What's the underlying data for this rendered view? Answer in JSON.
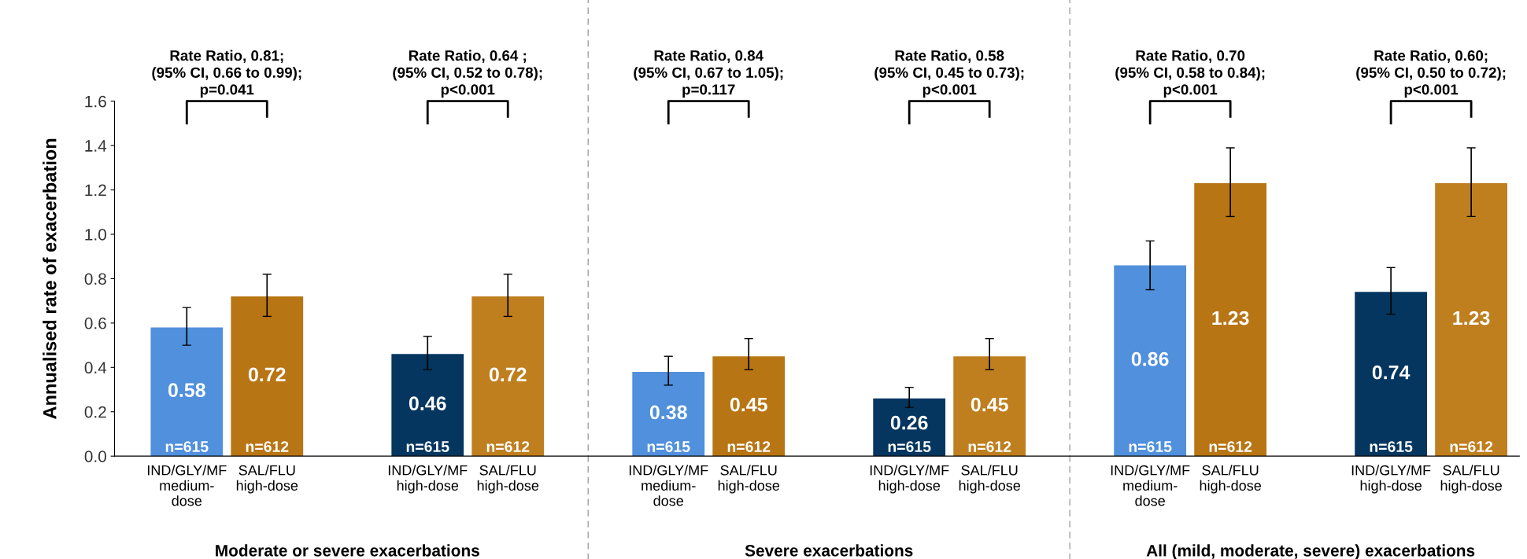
{
  "chart_data": {
    "type": "bar",
    "ylabel": "Annualised rate of exacerbation",
    "categories": [
      "IND/GLY/MF\nmedium-\ndose",
      "SAL/FLU\nhigh-dose",
      null,
      "IND/GLY/MF\nhigh-dose",
      "SAL/FLU\nhigh-dose",
      null,
      "IND/GLY/MF\nmedium-\ndose",
      "SAL/FLU\nhigh-dose",
      null,
      "IND/GLY/MF\nhigh-dose",
      "SAL/FLU\nhigh-dose",
      null,
      "IND/GLY/MF\nmedium-\ndose",
      "SAL/FLU\nhigh-dose",
      null,
      "IND/GLY/MF\nhigh-dose",
      "SAL/FLU\nhigh-dose"
    ],
    "values": [
      0.58,
      0.72,
      null,
      0.46,
      0.72,
      null,
      0.38,
      0.45,
      null,
      0.26,
      0.45,
      null,
      0.86,
      1.23,
      null,
      0.74,
      1.23
    ],
    "colors": [
      "#5090dc",
      "#b87514",
      null,
      "#04365f",
      "#bf7f1f",
      null,
      "#5090dc",
      "#b87514",
      null,
      "#04365f",
      "#bf7f1f",
      null,
      "#5090dc",
      "#b87514",
      null,
      "#04365f",
      "#bf7f1f"
    ],
    "errors": [
      [
        0.5,
        0.67
      ],
      [
        0.63,
        0.82
      ],
      null,
      [
        0.39,
        0.54
      ],
      [
        0.63,
        0.82
      ],
      null,
      [
        0.32,
        0.45
      ],
      [
        0.39,
        0.53
      ],
      null,
      [
        0.22,
        0.31
      ],
      [
        0.39,
        0.53
      ],
      null,
      [
        0.75,
        0.97
      ],
      [
        1.08,
        1.39
      ],
      null,
      [
        0.64,
        0.85
      ],
      [
        1.08,
        1.39
      ]
    ],
    "data_labels": true,
    "ylim": [
      0,
      1.6
    ],
    "yticks": [
      {
        "value": 0,
        "label": "0.0"
      },
      {
        "value": 0.2,
        "label": "0.2"
      },
      {
        "value": 0.4,
        "label": "0.4"
      },
      {
        "value": 0.6,
        "label": "0.6"
      },
      {
        "value": 0.8,
        "label": "0.8"
      },
      {
        "value": 1.0,
        "label": "1.0"
      },
      {
        "value": 1.2,
        "label": "1.2"
      },
      {
        "value": 1.4,
        "label": "1.4"
      },
      {
        "value": 1.6,
        "label": "1.6"
      }
    ],
    "annotations": [
      "Rate Ratio, 0.81;\n(95% CI, 0.66 to 0.99);\np=0.041",
      "Rate Ratio, 0.64 ;\n(95% CI, 0.52 to 0.78);\np<0.001",
      "Rate Ratio, 0.84\n(95% CI, 0.67 to 1.05);\np=0.117",
      "Rate Ratio, 0.58\n(95% CI, 0.45 to 0.73);\np<0.001",
      "Rate Ratio, 0.70\n(95% CI, 0.58 to 0.84);\np<0.001",
      "Rate Ratio, 0.60;\n(95% CI, 0.50 to 0.72);\np<0.001",
      "Moderate or severe exacerbations",
      "Severe exacerbations",
      "All (mild, moderate, severe) exacerbations",
      "n=615",
      "n=612",
      "n=615",
      "n=612",
      "n=615",
      "n=612",
      "n=615",
      "n=612",
      "n=615",
      "n=612",
      "n=615",
      "n=612"
    ]
  }
}
